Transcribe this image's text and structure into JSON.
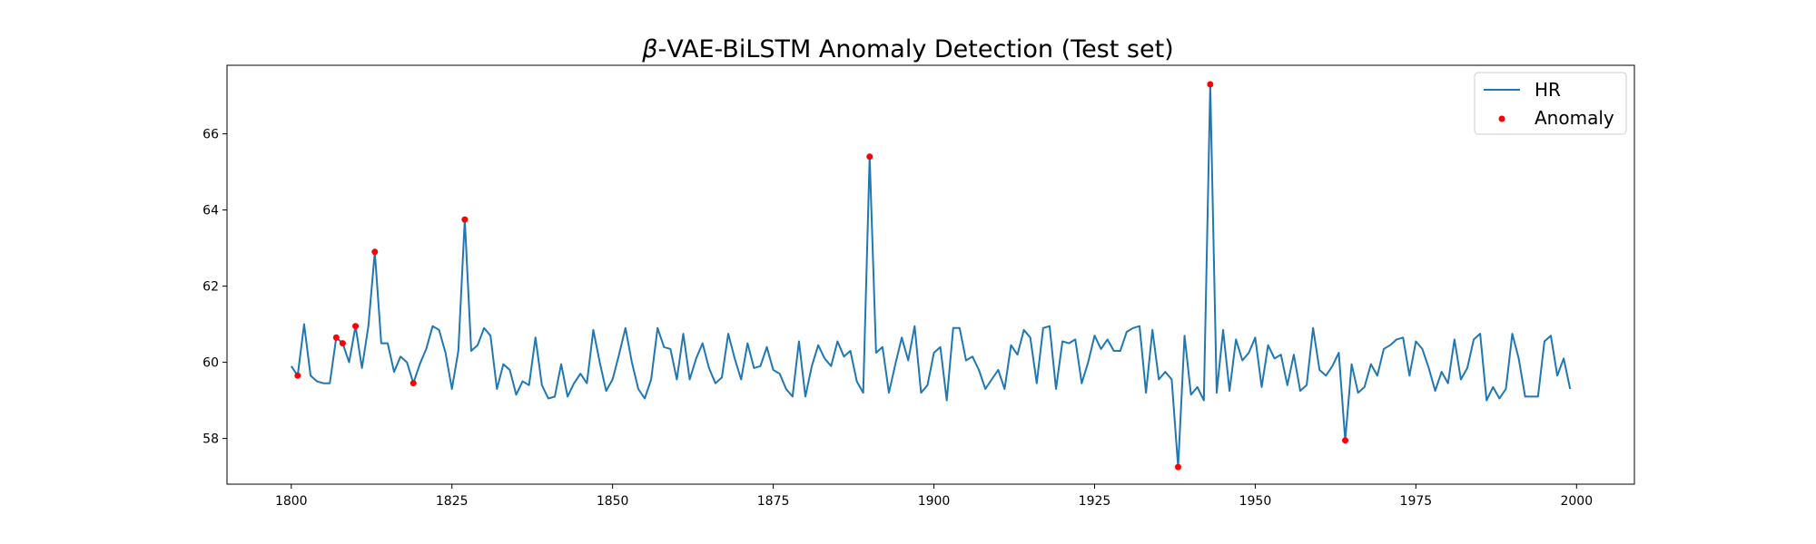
{
  "chart_data": {
    "type": "line",
    "title_symbol": "β",
    "title_rest": "-VAE-BiLSTM Anomaly Detection (Test set)",
    "xlabel": "",
    "ylabel": "",
    "xlim": [
      1790,
      2009
    ],
    "ylim": [
      56.8,
      67.8
    ],
    "x_ticks": [
      1800,
      1825,
      1850,
      1875,
      1900,
      1925,
      1950,
      1975,
      2000
    ],
    "y_ticks": [
      58,
      60,
      62,
      64,
      66
    ],
    "grid": false,
    "legend_position": "top-right",
    "legend": [
      {
        "label": "HR",
        "kind": "line",
        "color": "#1f77b4"
      },
      {
        "label": "Anomaly",
        "kind": "marker",
        "color": "#ff0000"
      }
    ],
    "series": [
      {
        "name": "HR",
        "color": "#1f77b4",
        "x_start": 1800,
        "x_step": 1,
        "values": [
          59.9,
          59.65,
          61.0,
          59.65,
          59.5,
          59.45,
          59.45,
          60.65,
          60.5,
          60.0,
          60.95,
          59.85,
          60.95,
          62.9,
          60.5,
          60.5,
          59.75,
          60.15,
          60.0,
          59.45,
          59.95,
          60.35,
          60.95,
          60.85,
          60.25,
          59.3,
          60.3,
          63.75,
          60.3,
          60.45,
          60.9,
          60.7,
          59.3,
          59.95,
          59.8,
          59.15,
          59.5,
          59.4,
          60.65,
          59.4,
          59.05,
          59.1,
          59.95,
          59.1,
          59.45,
          59.7,
          59.45,
          60.85,
          60.0,
          59.25,
          59.55,
          60.2,
          60.9,
          60.0,
          59.3,
          59.05,
          59.55,
          60.9,
          60.4,
          60.35,
          59.55,
          60.75,
          59.55,
          60.1,
          60.5,
          59.85,
          59.45,
          59.6,
          60.75,
          60.1,
          59.55,
          60.5,
          59.85,
          59.9,
          60.4,
          59.8,
          59.7,
          59.3,
          59.1,
          60.55,
          59.1,
          59.9,
          60.45,
          60.1,
          59.9,
          60.55,
          60.15,
          60.3,
          59.5,
          59.2,
          65.4,
          60.25,
          60.4,
          59.2,
          59.95,
          60.65,
          60.05,
          60.95,
          59.2,
          59.4,
          60.25,
          60.4,
          59.0,
          60.9,
          60.9,
          60.05,
          60.15,
          59.8,
          59.3,
          59.55,
          59.8,
          59.3,
          60.45,
          60.2,
          60.85,
          60.65,
          59.45,
          60.9,
          60.95,
          59.3,
          60.55,
          60.5,
          60.6,
          59.45,
          60.0,
          60.7,
          60.35,
          60.6,
          60.3,
          60.3,
          60.8,
          60.9,
          60.95,
          59.2,
          60.85,
          59.55,
          59.75,
          59.55,
          57.25,
          60.7,
          59.15,
          59.35,
          59.0,
          67.3,
          59.2,
          60.85,
          59.25,
          60.6,
          60.05,
          60.25,
          60.65,
          59.35,
          60.45,
          60.1,
          60.2,
          59.4,
          60.2,
          59.25,
          59.4,
          60.9,
          59.8,
          59.65,
          59.9,
          60.25,
          57.95,
          59.95,
          59.2,
          59.35,
          59.95,
          59.65,
          60.35,
          60.45,
          60.6,
          60.65,
          59.65,
          60.55,
          60.35,
          59.85,
          59.25,
          59.75,
          59.45,
          60.6,
          59.55,
          59.85,
          60.6,
          60.75,
          59.0,
          59.35,
          59.05,
          59.3,
          60.75,
          60.1,
          59.1,
          59.1,
          59.1,
          60.55,
          60.7,
          59.65,
          60.1,
          59.3
        ]
      }
    ],
    "anomalies": [
      {
        "x": 1801,
        "y": 59.65
      },
      {
        "x": 1807,
        "y": 60.65
      },
      {
        "x": 1808,
        "y": 60.5
      },
      {
        "x": 1810,
        "y": 60.95
      },
      {
        "x": 1813,
        "y": 62.9
      },
      {
        "x": 1819,
        "y": 59.45
      },
      {
        "x": 1827,
        "y": 63.75
      },
      {
        "x": 1890,
        "y": 65.4
      },
      {
        "x": 1938,
        "y": 57.25
      },
      {
        "x": 1943,
        "y": 67.3
      },
      {
        "x": 1964,
        "y": 57.95
      }
    ]
  }
}
